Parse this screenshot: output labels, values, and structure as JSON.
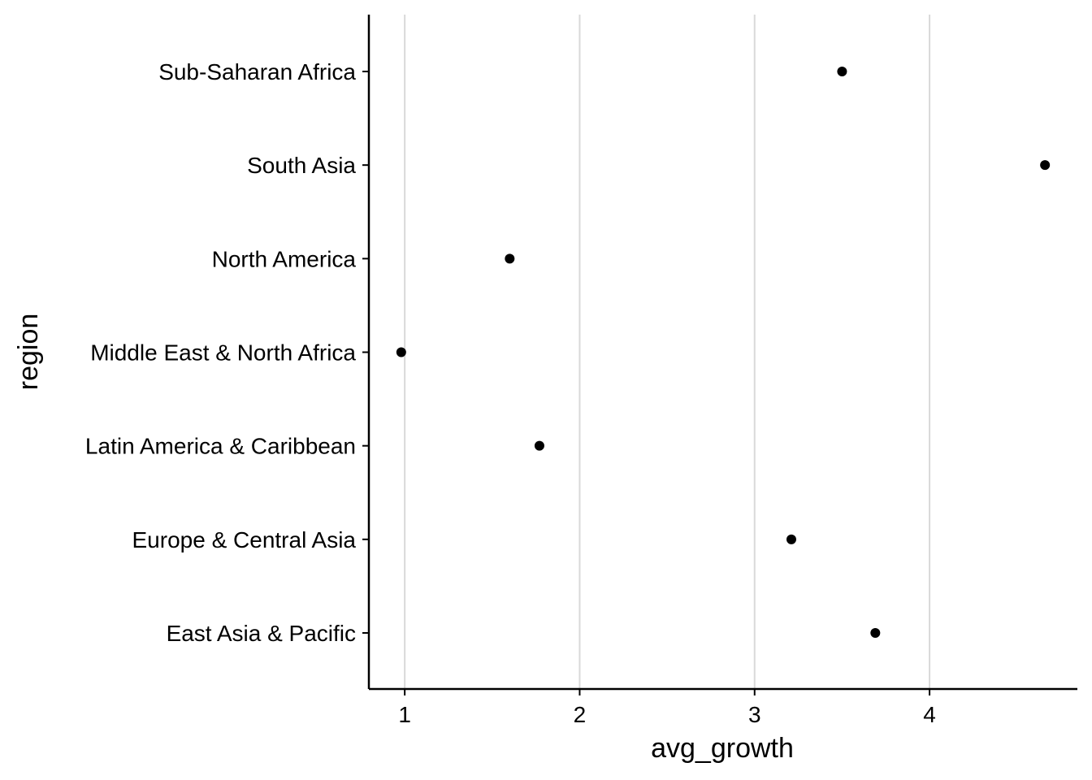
{
  "chart_data": {
    "type": "scatter",
    "title": "",
    "xlabel": "avg_growth",
    "ylabel": "region",
    "categories": [
      "East Asia & Pacific",
      "Europe & Central Asia",
      "Latin America & Caribbean",
      "Middle East & North Africa",
      "North America",
      "South Asia",
      "Sub-Saharan Africa"
    ],
    "values": [
      3.69,
      3.21,
      1.77,
      0.98,
      1.6,
      4.66,
      3.5
    ],
    "xlim": [
      0.795,
      4.845
    ],
    "x_ticks": [
      1,
      2,
      3,
      4
    ],
    "x_tick_labels": [
      "1",
      "2",
      "3",
      "4"
    ],
    "grid": "vertical major lines only",
    "legend": "none",
    "colors": {
      "point": "#000000",
      "grid": "#d9d9d9",
      "axis": "#000000",
      "background": "#ffffff"
    }
  }
}
